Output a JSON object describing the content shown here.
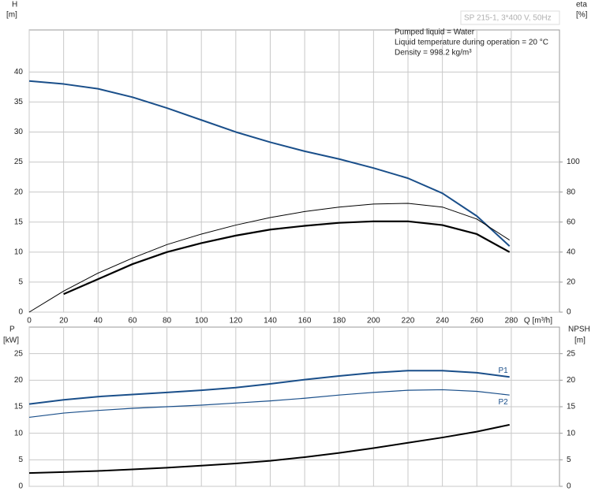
{
  "legend_box": "SP 215-1, 3*400 V, 50Hz",
  "chart_data": [
    {
      "type": "line",
      "y_label": "H",
      "y_unit": "[m]",
      "y2_label": "eta",
      "y2_unit": "[%]",
      "x_label": "Q [m³/h]",
      "annotations": [
        "Pumped liquid = Water",
        "Liquid temperature during operation = 20 °C",
        "Density = 998.2 kg/m³"
      ],
      "x": [
        0,
        20,
        40,
        60,
        80,
        100,
        120,
        140,
        160,
        180,
        200,
        220,
        240,
        260,
        279
      ],
      "xlim": [
        0,
        308
      ],
      "xticks": [
        0,
        20,
        40,
        60,
        80,
        100,
        120,
        140,
        160,
        180,
        200,
        220,
        240,
        260,
        280
      ],
      "ylim": [
        0,
        47
      ],
      "yticks": [
        0,
        5,
        10,
        15,
        20,
        25,
        30,
        35,
        40
      ],
      "y2lim": [
        0,
        188
      ],
      "y2ticks": [
        0,
        20,
        40,
        60,
        80,
        100
      ],
      "grid": true,
      "series": [
        {
          "color": "#1a4f8a",
          "width": 2,
          "values": [
            38.5,
            38,
            37.2,
            35.8,
            34,
            32,
            30,
            28.3,
            26.8,
            25.5,
            24,
            22.3,
            19.8,
            16,
            11
          ]
        },
        {
          "color": "#000000",
          "width": 1,
          "axis": "y2",
          "values": [
            0,
            14,
            26,
            36,
            45,
            52,
            58,
            63,
            67,
            70,
            72,
            72.5,
            70,
            62,
            48
          ]
        },
        {
          "color": "#000000",
          "width": 2.2,
          "axis": "y2",
          "values": [
            null,
            12,
            22,
            32,
            40,
            46,
            51,
            55,
            57.5,
            59.5,
            60.5,
            60.5,
            58,
            52,
            40
          ]
        }
      ]
    },
    {
      "type": "line",
      "y_label": "P",
      "y_unit": "[kW]",
      "y2_label": "NPSH",
      "y2_unit": "[m]",
      "x": [
        0,
        20,
        40,
        60,
        80,
        100,
        120,
        140,
        160,
        180,
        200,
        220,
        240,
        260,
        279
      ],
      "xlim": [
        0,
        308
      ],
      "xticks": [
        0,
        20,
        40,
        60,
        80,
        100,
        120,
        140,
        160,
        180,
        200,
        220,
        240,
        260,
        280
      ],
      "ylim": [
        0,
        30
      ],
      "yticks": [
        0,
        5,
        10,
        15,
        20,
        25
      ],
      "y2lim": [
        0,
        30
      ],
      "y2ticks": [
        0,
        5,
        10,
        15,
        20,
        25
      ],
      "grid": true,
      "series": [
        {
          "name": "P1",
          "color": "#1a4f8a",
          "width": 2,
          "values": [
            15.5,
            16.3,
            16.9,
            17.3,
            17.7,
            18.1,
            18.6,
            19.3,
            20.1,
            20.8,
            21.4,
            21.8,
            21.8,
            21.4,
            20.6
          ]
        },
        {
          "name": "P2",
          "color": "#1a4f8a",
          "width": 1.2,
          "values": [
            13,
            13.8,
            14.3,
            14.7,
            15,
            15.3,
            15.7,
            16.1,
            16.6,
            17.2,
            17.7,
            18.1,
            18.2,
            17.9,
            17.2
          ]
        },
        {
          "color": "#000000",
          "width": 2,
          "axis": "y2",
          "values": [
            2.5,
            2.7,
            2.9,
            3.2,
            3.5,
            3.9,
            4.3,
            4.8,
            5.5,
            6.3,
            7.2,
            8.2,
            9.2,
            10.3,
            11.6
          ]
        }
      ]
    }
  ]
}
